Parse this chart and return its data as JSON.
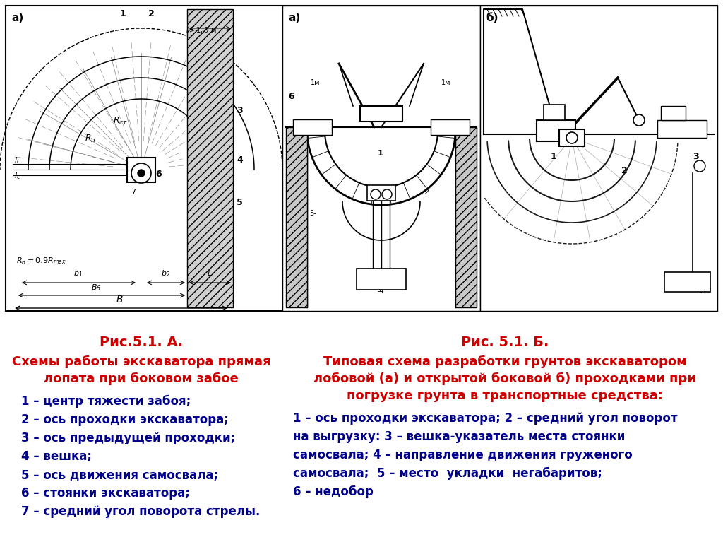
{
  "title_left": "Рис.5.1. А.",
  "subtitle_left_1": "Схемы работы экскаватора прямая",
  "subtitle_left_2": "лопата при боковом забое",
  "items_left": [
    "1 – центр тяжести забоя;",
    "2 – ось проходки экскаватора;",
    "3 – ось предыдущей проходки;",
    "4 – вешка;",
    "5 – ось движения самосвала;",
    "6 – стоянки экскаватора;",
    "7 – средний угол поворота стрелы."
  ],
  "title_right": "Рис. 5.1. Б.",
  "subtitle_right_1": "Типовая схема разработки грунтов экскаватором",
  "subtitle_right_2": "лобовой (а) и открытой боковой б) проходками при",
  "subtitle_right_3": "погрузке грунта в транспортные средства:",
  "items_right": [
    "1 – ось проходки экскаватора; 2 – средний угол поворот",
    "на выгрузку: 3 – вешка-указатель места стоянки",
    "самосвала; 4 – направление движения груженого",
    "самосвала;  5 – место  укладки  негабаритов;",
    "6 – недобор"
  ],
  "bg_color": "#ffffff",
  "title_color": "#cc0000",
  "text_color": "#00008B",
  "label_left_a": "а)",
  "label_right_a": "а)",
  "label_right_b": "б)"
}
